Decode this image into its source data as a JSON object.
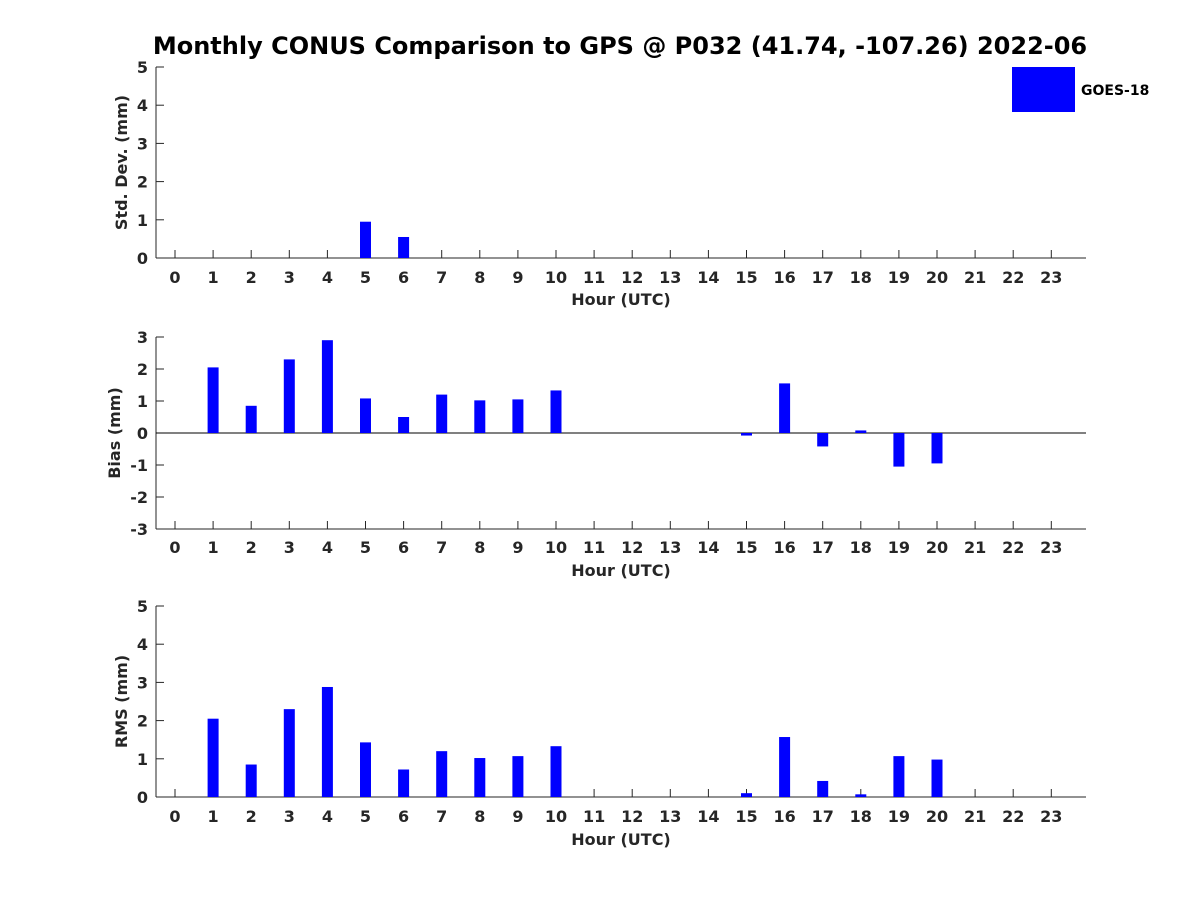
{
  "chart_data": {
    "title": "Monthly CONUS Comparison to GPS @ P032 (41.74, -107.26) 2022-06",
    "legend": {
      "label": "GOES-18",
      "placement": "top-right"
    },
    "bar_color": "#0000ff",
    "hours": [
      "0",
      "1",
      "2",
      "3",
      "4",
      "5",
      "6",
      "7",
      "8",
      "9",
      "10",
      "11",
      "12",
      "13",
      "14",
      "15",
      "16",
      "17",
      "18",
      "19",
      "20",
      "21",
      "22",
      "23"
    ],
    "panels": [
      {
        "type": "bar",
        "ylabel": "Std. Dev. (mm)",
        "xlabel": "Hour (UTC)",
        "ylim": [
          0,
          5
        ],
        "yticks": [
          "0",
          "1",
          "2",
          "3",
          "4",
          "5"
        ],
        "values": [
          null,
          0,
          0,
          0,
          0,
          0.95,
          0.55,
          0,
          0,
          0,
          0,
          null,
          null,
          null,
          null,
          0,
          0,
          0,
          0,
          0,
          0,
          null,
          null,
          null
        ]
      },
      {
        "type": "bar",
        "ylabel": "Bias (mm)",
        "xlabel": "Hour (UTC)",
        "ylim": [
          -3,
          3
        ],
        "yticks": [
          "-3",
          "-2",
          "-1",
          "0",
          "1",
          "2",
          "3"
        ],
        "zero_line": true,
        "values": [
          null,
          2.05,
          0.85,
          2.3,
          2.9,
          1.08,
          0.5,
          1.2,
          1.02,
          1.05,
          1.33,
          null,
          null,
          null,
          null,
          -0.08,
          1.55,
          -0.42,
          0.08,
          -1.05,
          -0.95,
          null,
          null,
          null
        ]
      },
      {
        "type": "bar",
        "ylabel": "RMS (mm)",
        "xlabel": "Hour (UTC)",
        "ylim": [
          0,
          5
        ],
        "yticks": [
          "0",
          "1",
          "2",
          "3",
          "4",
          "5"
        ],
        "values": [
          null,
          2.05,
          0.85,
          2.3,
          2.88,
          1.43,
          0.72,
          1.2,
          1.02,
          1.07,
          1.33,
          null,
          null,
          null,
          null,
          0.1,
          1.57,
          0.42,
          0.07,
          1.07,
          0.98,
          null,
          null,
          null
        ]
      }
    ]
  }
}
